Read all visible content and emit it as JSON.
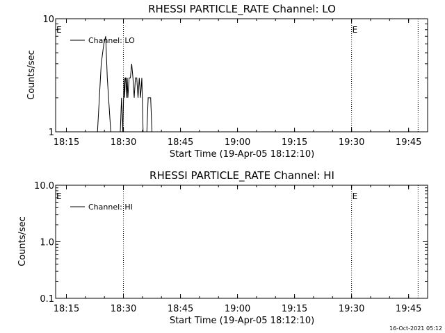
{
  "footer_timestamp": "16-Oct-2021 05:12",
  "chart_data": [
    {
      "type": "line",
      "title": "RHESSI PARTICLE_RATE Channel: LO",
      "xlabel": "Start Time (19-Apr-05 18:12:10)",
      "ylabel": "Counts/sec",
      "yscale": "log",
      "ylim": [
        1,
        10
      ],
      "xlim": [
        "18:12:10",
        "19:50:00"
      ],
      "x_ticks": [
        "18:15",
        "18:30",
        "18:45",
        "19:00",
        "19:15",
        "19:30",
        "19:45"
      ],
      "y_ticks": [
        "1",
        "10"
      ],
      "legend_label": "Channel: LO",
      "legend_placement": "top-left",
      "marker_lines": [
        {
          "time": "18:30:00",
          "label": ""
        },
        {
          "time": "19:30:00",
          "label": "E"
        },
        {
          "time": "19:47:30",
          "label": ""
        }
      ],
      "start_marker_label": "E",
      "series": [
        {
          "x": [
            "18:23:10",
            "18:24:10",
            "18:24:50",
            "18:25:20",
            "18:25:45",
            "18:26:40",
            "18:27:10",
            "18:27:30",
            "18:28:30",
            "18:29:10",
            "18:29:30",
            "18:29:50",
            "18:30:10",
            "18:30:20",
            "18:30:30",
            "18:30:40",
            "18:30:50",
            "18:31:00",
            "18:31:10",
            "18:31:30",
            "18:31:50",
            "18:32:10",
            "18:32:30",
            "18:32:50",
            "18:33:10",
            "18:33:30",
            "18:33:50",
            "18:34:10",
            "18:34:30",
            "18:34:50",
            "18:35:10",
            "18:35:30",
            "18:35:50",
            "18:36:10",
            "18:36:30",
            "18:36:50",
            "18:37:10",
            "18:37:30",
            "18:37:50"
          ],
          "y": [
            1,
            4,
            6,
            7,
            3,
            1,
            1,
            1,
            1,
            1,
            2,
            1,
            3,
            2,
            3,
            3,
            2,
            3,
            2,
            3,
            3,
            4,
            3,
            2,
            3,
            3,
            2,
            3,
            2,
            3,
            1,
            1,
            1,
            1,
            2,
            2,
            2,
            1,
            1
          ]
        }
      ]
    },
    {
      "type": "line",
      "title": "RHESSI PARTICLE_RATE Channel: HI",
      "xlabel": "Start Time (19-Apr-05 18:12:10)",
      "ylabel": "Counts/sec",
      "yscale": "log",
      "ylim": [
        0.1,
        10
      ],
      "xlim": [
        "18:12:10",
        "19:50:00"
      ],
      "x_ticks": [
        "18:15",
        "18:30",
        "18:45",
        "19:00",
        "19:15",
        "19:30",
        "19:45"
      ],
      "y_ticks": [
        "0.1",
        "1.0",
        "10.0"
      ],
      "legend_label": "Channel: HI",
      "legend_placement": "top-left",
      "marker_lines": [
        {
          "time": "18:30:00",
          "label": ""
        },
        {
          "time": "19:30:00",
          "label": "E"
        },
        {
          "time": "19:47:30",
          "label": ""
        }
      ],
      "start_marker_label": "E",
      "series": [
        {
          "x": [],
          "y": []
        }
      ]
    }
  ]
}
